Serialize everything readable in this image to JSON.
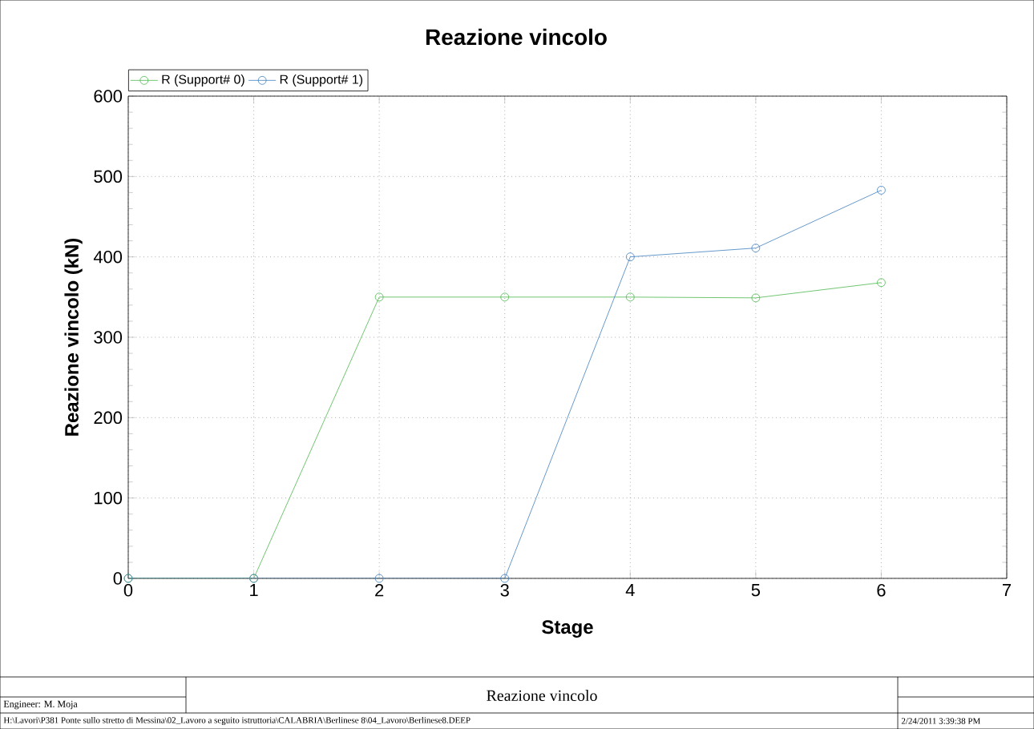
{
  "chart_data": {
    "type": "line",
    "title": "Reazione vincolo",
    "xlabel": "Stage",
    "ylabel": "Reazione vincolo (kN)",
    "x": [
      0,
      1,
      2,
      3,
      4,
      5,
      6
    ],
    "series": [
      {
        "name": "R (Support# 0)",
        "color": "#4cb84c",
        "values": [
          0,
          0,
          350,
          350,
          350,
          349,
          368
        ]
      },
      {
        "name": "R (Support# 1)",
        "color": "#3f7fbf",
        "values": [
          0,
          0,
          0,
          0,
          400,
          411,
          483
        ]
      }
    ],
    "xlim": [
      0,
      7
    ],
    "xticks": [
      0,
      1,
      2,
      3,
      4,
      5,
      6,
      7
    ],
    "ylim": [
      0,
      600
    ],
    "yticks": [
      0,
      100,
      200,
      300,
      400,
      500,
      600
    ],
    "grid": true,
    "legend": "top left",
    "marker": "circle",
    "line_style": "solid",
    "annotations": [
      "Engineer: M. Moja",
      "Reazione vincolo",
      "H:\\Lavori\\P381 Ponte sullo stretto di Messina\\02_Lavoro a seguito istruttoria\\CALABRIA\\Berlinese 8\\04_Lavoro\\Berlinese8.DEEP",
      "2/24/2011 3:39:38 PM"
    ]
  }
}
